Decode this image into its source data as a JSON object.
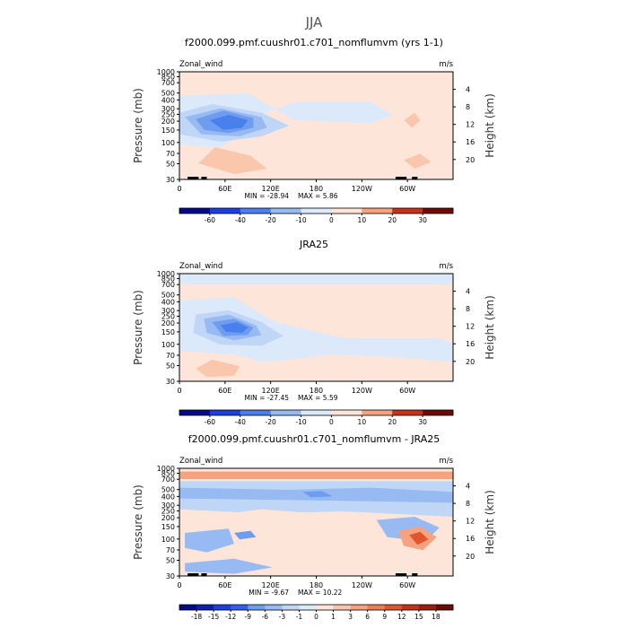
{
  "title": "JJA",
  "colors": {
    "blue_levels": [
      "#000a8a",
      "#0b1fb3",
      "#1d3fe0",
      "#2f60f0",
      "#4a7fee",
      "#6e9cef",
      "#97baf2",
      "#bfd6f7",
      "#dce9fb"
    ],
    "red_levels": [
      "#fde6d9",
      "#fac6ac",
      "#f5a27f",
      "#ee7c54",
      "#e0552e",
      "#c43318",
      "#9e1d0c",
      "#6e0a04"
    ],
    "frame": "#000000",
    "panel_bg": "#fde6d9"
  },
  "chart_data": [
    {
      "type": "heatmap",
      "panel": "model",
      "title": "f2000.099.pmf.cuushr01.c701_nomflumvm (yrs 1-1)",
      "left_label": "Zonal_wind",
      "units": "m/s",
      "ylabel": "Pressure (mb)",
      "ylabel_right": "Height (km)",
      "x_ticks": [
        "0",
        "60E",
        "120E",
        "180",
        "120W",
        "60W"
      ],
      "y_ticks": [
        "30",
        "50",
        "70",
        "100",
        "150",
        "200",
        "250",
        "300",
        "400",
        "500",
        "700",
        "850",
        "1000"
      ],
      "height_ticks": [
        "4",
        "8",
        "12",
        "16",
        "20"
      ],
      "min": -28.94,
      "max": 5.86,
      "min_label": "MIN = -28.94",
      "max_label": "MAX = 5.86",
      "colorbar_labels": [
        "-60",
        "-40",
        "-20",
        "-10",
        "0",
        "10",
        "20",
        "30"
      ]
    },
    {
      "type": "heatmap",
      "panel": "reanalysis",
      "title": "JRA25",
      "left_label": "Zonal_wind",
      "units": "m/s",
      "ylabel": "Pressure (mb)",
      "ylabel_right": "Height (km)",
      "x_ticks": [
        "0",
        "60E",
        "120E",
        "180",
        "120W",
        "60W"
      ],
      "y_ticks": [
        "30",
        "50",
        "70",
        "100",
        "150",
        "200",
        "250",
        "300",
        "400",
        "500",
        "700",
        "850",
        "1000"
      ],
      "height_ticks": [
        "4",
        "8",
        "12",
        "16",
        "20"
      ],
      "min": -27.45,
      "max": 5.59,
      "min_label": "MIN = -27.45",
      "max_label": "MAX = 5.59",
      "colorbar_labels": [
        "-60",
        "-40",
        "-20",
        "-10",
        "0",
        "10",
        "20",
        "30"
      ]
    },
    {
      "type": "heatmap",
      "panel": "difference",
      "title": "f2000.099.pmf.cuushr01.c701_nomflumvm - JRA25",
      "left_label": "Zonal_wind",
      "units": "m/s",
      "ylabel": "Pressure (mb)",
      "ylabel_right": "Height (km)",
      "x_ticks": [
        "0",
        "60E",
        "120E",
        "180",
        "120W",
        "60W"
      ],
      "y_ticks": [
        "30",
        "50",
        "70",
        "100",
        "150",
        "200",
        "250",
        "300",
        "400",
        "500",
        "700",
        "850",
        "1000"
      ],
      "height_ticks": [
        "4",
        "8",
        "12",
        "16",
        "20"
      ],
      "min": -9.67,
      "max": 10.22,
      "min_label": "MIN = -9.67",
      "max_label": "MAX = 10.22",
      "colorbar_labels": [
        "-18",
        "-15",
        "-12",
        "-9",
        "-6",
        "-3",
        "-1",
        "0",
        "1",
        "3",
        "6",
        "9",
        "12",
        "15",
        "18"
      ]
    }
  ]
}
